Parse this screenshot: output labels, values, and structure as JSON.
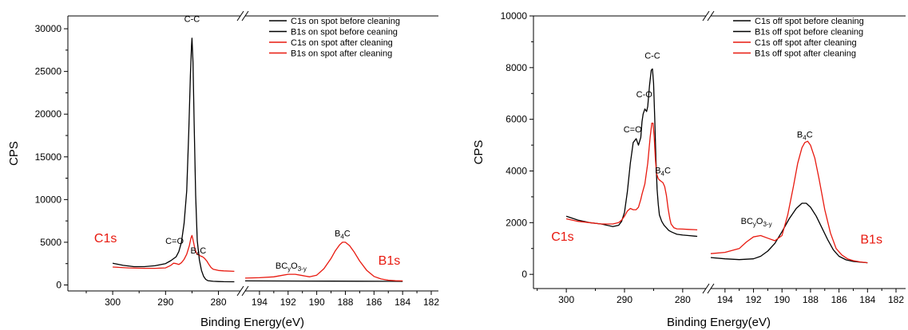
{
  "colors": {
    "black": "#000000",
    "red": "#e8190f"
  },
  "chart_data": [
    {
      "type": "line",
      "ylabel": "CPS",
      "xlabel": "Binding Energy(eV)",
      "ylim": [
        -700,
        31500
      ],
      "yticks": [
        0,
        5000,
        10000,
        15000,
        20000,
        25000,
        30000
      ],
      "ytick_labels": [
        "0",
        "5000",
        "10000",
        "15000",
        "20000",
        "25000",
        "30000"
      ],
      "x_broken_axis": true,
      "x_reversed": true,
      "left_xlim": [
        305,
        276
      ],
      "left_xticks": [
        300,
        290,
        280
      ],
      "left_xtick_labels": [
        "300",
        "290",
        "280"
      ],
      "right_xlim": [
        195,
        182
      ],
      "right_xticks": [
        194,
        192,
        190,
        188,
        186,
        184,
        182
      ],
      "right_xtick_labels": [
        "194",
        "192",
        "190",
        "188",
        "186",
        "184",
        "182"
      ],
      "legend_position": "top-right",
      "legend": [
        {
          "label": "C1s on spot before cleaning",
          "color": "#000000"
        },
        {
          "label": "B1s on spot before ceaning",
          "color": "#000000"
        },
        {
          "label": "C1s on spot after cleaning",
          "color": "#e8190f"
        },
        {
          "label": "B1s on spot after cleaning",
          "color": "#e8190f"
        }
      ],
      "region_labels": [
        {
          "text": "C1s",
          "segment": "left",
          "x": 303.5,
          "y": 5000,
          "color": "#e8190f"
        },
        {
          "text": "B1s",
          "segment": "right",
          "x": 185.7,
          "y": 2400,
          "color": "#e8190f"
        }
      ],
      "annotations": [
        {
          "main": "C-C",
          "segment": "left",
          "x": 285,
          "y": 30800
        },
        {
          "main": "C=O",
          "segment": "left",
          "x": 288.3,
          "y": 4800
        },
        {
          "main": "B",
          "sub": "4",
          "tail": "C",
          "segment": "left",
          "x": 283.8,
          "y": 3700
        },
        {
          "main": "BC",
          "sub": "y",
          "mid": "O",
          "sub2": "3-y",
          "segment": "right",
          "x": 191.8,
          "y": 1900
        },
        {
          "main": "B",
          "sub": "4",
          "tail": "C",
          "segment": "right",
          "x": 188.2,
          "y": 5700
        }
      ],
      "series": [
        {
          "name": "C1s on spot before cleaning",
          "segment": "left",
          "color": "#000000",
          "x": [
            300,
            298,
            296,
            294,
            292,
            290,
            289,
            288,
            287.5,
            287,
            286.5,
            286,
            285.6,
            285.3,
            285.1,
            285,
            284.8,
            284.6,
            284.3,
            284,
            283.6,
            283.2,
            282.8,
            282.4,
            282,
            281,
            280,
            279,
            277
          ],
          "y": [
            2550,
            2300,
            2150,
            2150,
            2250,
            2500,
            2850,
            3300,
            3900,
            5000,
            7200,
            11000,
            18000,
            24500,
            28000,
            28900,
            26000,
            19000,
            10500,
            5200,
            2900,
            1700,
            1000,
            650,
            500,
            430,
            400,
            380,
            370
          ]
        },
        {
          "name": "C1s on spot after cleaning",
          "segment": "left",
          "color": "#e8190f",
          "x": [
            300,
            297,
            294,
            292,
            290,
            289,
            288.5,
            288,
            287.5,
            287,
            286.5,
            286,
            285.5,
            285.2,
            285,
            284.8,
            284.5,
            284.2,
            284,
            283.7,
            283.4,
            283,
            282.6,
            282.2,
            281.8,
            281.4,
            281,
            280,
            279,
            277
          ],
          "y": [
            2100,
            2000,
            1950,
            1950,
            2000,
            2300,
            2550,
            2500,
            2400,
            2600,
            3000,
            3600,
            4600,
            5500,
            5800,
            5300,
            4400,
            3800,
            3600,
            3500,
            3400,
            3300,
            3100,
            2800,
            2400,
            2050,
            1850,
            1700,
            1650,
            1600
          ]
        },
        {
          "name": "B1s on spot before ceaning",
          "segment": "right",
          "color": "#000000",
          "x": [
            195,
            193,
            191,
            189,
            187,
            185,
            184
          ],
          "y": [
            480,
            470,
            460,
            450,
            440,
            430,
            420
          ]
        },
        {
          "name": "B1s on spot after cleaning",
          "segment": "right",
          "color": "#e8190f",
          "x": [
            195,
            194,
            193,
            192.5,
            192,
            191.5,
            191,
            190.5,
            190,
            189.5,
            189,
            188.7,
            188.4,
            188.2,
            188,
            187.7,
            187.4,
            187,
            186.5,
            186,
            185.5,
            185,
            184.5,
            184
          ],
          "y": [
            800,
            850,
            950,
            1100,
            1250,
            1250,
            1100,
            950,
            1150,
            1900,
            3100,
            4000,
            4700,
            5000,
            5000,
            4600,
            3900,
            2800,
            1700,
            1000,
            700,
            560,
            500,
            480
          ]
        }
      ]
    },
    {
      "type": "line",
      "ylabel": "CPS",
      "xlabel": "Binding Energy(eV)",
      "ylim": [
        -550,
        10000
      ],
      "yticks": [
        0,
        2000,
        4000,
        6000,
        8000,
        10000
      ],
      "ytick_labels": [
        "0",
        "2000",
        "4000",
        "6000",
        "8000",
        "10000"
      ],
      "x_broken_axis": true,
      "x_reversed": true,
      "left_xlim": [
        304,
        276
      ],
      "left_xticks": [
        300,
        290,
        280
      ],
      "left_xtick_labels": [
        "300",
        "290",
        "280"
      ],
      "right_xlim": [
        195,
        182
      ],
      "right_xticks": [
        194,
        192,
        190,
        188,
        186,
        184,
        182
      ],
      "right_xtick_labels": [
        "194",
        "192",
        "190",
        "188",
        "186",
        "184",
        "182"
      ],
      "legend_position": "top-right",
      "legend": [
        {
          "label": "C1s off spot before cleaning",
          "color": "#000000"
        },
        {
          "label": "B1s off spot before cleaning",
          "color": "#000000"
        },
        {
          "label": "C1s off spot after cleaning",
          "color": "#e8190f"
        },
        {
          "label": "B1s off spot after cleaning",
          "color": "#e8190f"
        }
      ],
      "region_labels": [
        {
          "text": "C1s",
          "segment": "left",
          "x": 302.6,
          "y": 1300,
          "color": "#e8190f"
        },
        {
          "text": "B1s",
          "segment": "right",
          "x": 184.5,
          "y": 1200,
          "color": "#e8190f"
        }
      ],
      "annotations": [
        {
          "main": "C-C",
          "segment": "left",
          "x": 285.2,
          "y": 8350
        },
        {
          "main": "C-O",
          "segment": "left",
          "x": 286.6,
          "y": 6850
        },
        {
          "main": "C=O",
          "segment": "left",
          "x": 288.6,
          "y": 5500
        },
        {
          "main": "B",
          "sub": "4",
          "tail": "C",
          "segment": "left",
          "x": 283.4,
          "y": 3900
        },
        {
          "main": "BC",
          "sub": "y",
          "mid": "O",
          "sub2": "3-y",
          "segment": "right",
          "x": 191.8,
          "y": 1950
        },
        {
          "main": "B",
          "sub": "4",
          "tail": "C",
          "segment": "right",
          "x": 188.4,
          "y": 5300
        }
      ],
      "series": [
        {
          "name": "C1s off spot before cleaning",
          "segment": "left",
          "color": "#000000",
          "x": [
            300,
            298,
            296,
            294,
            292,
            291,
            290.5,
            290,
            289.5,
            289,
            288.5,
            288,
            287.6,
            287.2,
            287,
            286.8,
            286.5,
            286.2,
            286,
            285.7,
            285.4,
            285.2,
            285,
            284.8,
            284.6,
            284.4,
            284.2,
            284,
            283.6,
            283.2,
            282.8,
            282.4,
            282,
            281.5,
            281,
            280,
            279,
            278,
            277.5
          ],
          "y": [
            2250,
            2100,
            2000,
            1950,
            1850,
            1900,
            2050,
            2400,
            3200,
            4300,
            5100,
            5250,
            5000,
            5300,
            5900,
            6200,
            6400,
            6300,
            6500,
            7300,
            7900,
            7950,
            7400,
            6000,
            4500,
            3300,
            2700,
            2300,
            2050,
            1900,
            1800,
            1700,
            1650,
            1600,
            1550,
            1520,
            1500,
            1480,
            1470
          ]
        },
        {
          "name": "C1s off spot after cleaning",
          "segment": "left",
          "color": "#e8190f",
          "x": [
            300,
            298,
            296,
            294,
            292,
            291,
            290.5,
            290,
            289.5,
            289,
            288.5,
            288,
            287.6,
            287.2,
            287,
            286.5,
            286,
            285.6,
            285.3,
            285.1,
            284.9,
            284.7,
            284.5,
            284.2,
            284,
            283.7,
            283.4,
            283.1,
            282.8,
            282.5,
            282.2,
            282,
            281.5,
            281,
            280,
            279,
            278,
            277.5
          ],
          "y": [
            2150,
            2050,
            2000,
            1950,
            1950,
            2000,
            2100,
            2250,
            2450,
            2550,
            2500,
            2500,
            2600,
            2900,
            3100,
            3500,
            4300,
            5300,
            5850,
            5850,
            5300,
            4500,
            3900,
            3700,
            3650,
            3600,
            3550,
            3400,
            3050,
            2550,
            2150,
            1950,
            1800,
            1760,
            1750,
            1740,
            1730,
            1720
          ]
        },
        {
          "name": "B1s off spot before cleaning",
          "segment": "right",
          "color": "#000000",
          "x": [
            195,
            194,
            193,
            192,
            191.5,
            191,
            190.5,
            190,
            189.5,
            189,
            188.6,
            188.3,
            188,
            187.6,
            187.2,
            186.8,
            186.4,
            186,
            185.5,
            185,
            184.5,
            184
          ],
          "y": [
            650,
            600,
            570,
            600,
            700,
            900,
            1200,
            1650,
            2150,
            2550,
            2750,
            2750,
            2600,
            2250,
            1800,
            1350,
            950,
            700,
            560,
            500,
            470,
            450
          ]
        },
        {
          "name": "B1s off spot after cleaning",
          "segment": "right",
          "color": "#e8190f",
          "x": [
            195,
            194,
            193,
            192.5,
            192,
            191.5,
            191,
            190.5,
            190,
            189.6,
            189.2,
            188.9,
            188.6,
            188.4,
            188.2,
            188,
            187.7,
            187.4,
            187,
            186.6,
            186.2,
            185.8,
            185.4,
            185,
            184.5,
            184
          ],
          "y": [
            800,
            850,
            1000,
            1250,
            1450,
            1500,
            1400,
            1300,
            1500,
            2300,
            3400,
            4300,
            4900,
            5100,
            5150,
            5000,
            4500,
            3700,
            2500,
            1600,
            1000,
            750,
            600,
            530,
            480,
            450
          ]
        }
      ]
    }
  ]
}
